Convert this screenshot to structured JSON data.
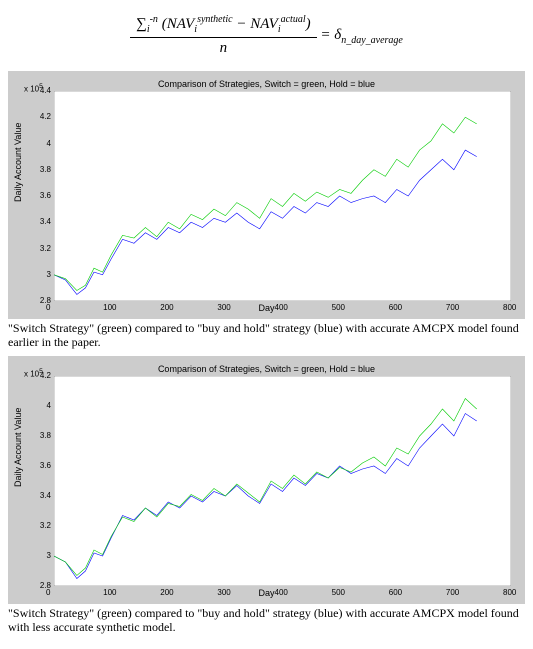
{
  "formula": {
    "sumLimits": "-n",
    "sumIndex": "i",
    "term1": "NAV",
    "term1_sub": "i",
    "term1_sup": "synthetic",
    "term2": "NAV",
    "term2_sub": "i",
    "term2_sup": "actual",
    "denom": "n",
    "rhs_symbol": "δ",
    "rhs_sub": "n_day_average"
  },
  "chart1": {
    "title": "Comparison of Strategies, Switch = green, Hold = blue",
    "ylabel": "Daily Account Value",
    "xlabel": "Day",
    "exp": "x 10",
    "exp_power": "5",
    "xlim": [
      0,
      800
    ],
    "ylim": [
      2.8,
      4.4
    ],
    "yticks": [
      "2.8",
      "3",
      "3.2",
      "3.4",
      "3.6",
      "3.8",
      "4",
      "4.2",
      "4.4"
    ],
    "xticks": [
      "0",
      "100",
      "200",
      "300",
      "400",
      "500",
      "600",
      "700",
      "800"
    ],
    "colors": {
      "switch": "#00cc00",
      "hold": "#0000ff",
      "plot_bg": "#ffffff",
      "panel_bg": "#cccccc",
      "axis": "#000000"
    },
    "switch_series": [
      [
        0,
        3.0
      ],
      [
        20,
        2.97
      ],
      [
        40,
        2.88
      ],
      [
        55,
        2.92
      ],
      [
        70,
        3.05
      ],
      [
        85,
        3.02
      ],
      [
        100,
        3.15
      ],
      [
        120,
        3.3
      ],
      [
        140,
        3.28
      ],
      [
        160,
        3.36
      ],
      [
        180,
        3.29
      ],
      [
        200,
        3.4
      ],
      [
        220,
        3.35
      ],
      [
        240,
        3.46
      ],
      [
        260,
        3.42
      ],
      [
        280,
        3.5
      ],
      [
        300,
        3.45
      ],
      [
        320,
        3.55
      ],
      [
        340,
        3.5
      ],
      [
        360,
        3.43
      ],
      [
        380,
        3.58
      ],
      [
        400,
        3.52
      ],
      [
        420,
        3.62
      ],
      [
        440,
        3.56
      ],
      [
        460,
        3.63
      ],
      [
        480,
        3.59
      ],
      [
        500,
        3.65
      ],
      [
        520,
        3.62
      ],
      [
        540,
        3.72
      ],
      [
        560,
        3.8
      ],
      [
        580,
        3.75
      ],
      [
        600,
        3.88
      ],
      [
        620,
        3.82
      ],
      [
        640,
        3.95
      ],
      [
        660,
        4.02
      ],
      [
        680,
        4.15
      ],
      [
        700,
        4.08
      ],
      [
        720,
        4.2
      ],
      [
        740,
        4.15
      ]
    ],
    "hold_series": [
      [
        0,
        3.0
      ],
      [
        20,
        2.96
      ],
      [
        40,
        2.85
      ],
      [
        55,
        2.9
      ],
      [
        70,
        3.02
      ],
      [
        85,
        3.0
      ],
      [
        100,
        3.12
      ],
      [
        120,
        3.27
      ],
      [
        140,
        3.24
      ],
      [
        160,
        3.32
      ],
      [
        180,
        3.27
      ],
      [
        200,
        3.36
      ],
      [
        220,
        3.32
      ],
      [
        240,
        3.4
      ],
      [
        260,
        3.36
      ],
      [
        280,
        3.43
      ],
      [
        300,
        3.4
      ],
      [
        320,
        3.47
      ],
      [
        340,
        3.4
      ],
      [
        360,
        3.35
      ],
      [
        380,
        3.48
      ],
      [
        400,
        3.43
      ],
      [
        420,
        3.52
      ],
      [
        440,
        3.47
      ],
      [
        460,
        3.55
      ],
      [
        480,
        3.52
      ],
      [
        500,
        3.6
      ],
      [
        520,
        3.55
      ],
      [
        540,
        3.58
      ],
      [
        560,
        3.6
      ],
      [
        580,
        3.55
      ],
      [
        600,
        3.65
      ],
      [
        620,
        3.6
      ],
      [
        640,
        3.72
      ],
      [
        660,
        3.8
      ],
      [
        680,
        3.88
      ],
      [
        700,
        3.8
      ],
      [
        720,
        3.95
      ],
      [
        740,
        3.9
      ]
    ]
  },
  "caption1": "\"Switch Strategy\" (green) compared to \"buy and hold\" strategy (blue) with accurate AMCPX model found earlier in the paper.",
  "chart2": {
    "title": "Comparison of Strategies, Switch = green, Hold = blue",
    "ylabel": "Daily Account Value",
    "xlabel": "Day",
    "exp": "x 10",
    "exp_power": "5",
    "xlim": [
      0,
      800
    ],
    "ylim": [
      2.8,
      4.2
    ],
    "yticks": [
      "2.8",
      "3",
      "3.2",
      "3.4",
      "3.6",
      "3.8",
      "4",
      "4.2"
    ],
    "xticks": [
      "0",
      "100",
      "200",
      "300",
      "400",
      "500",
      "600",
      "700",
      "800"
    ],
    "colors": {
      "switch": "#00cc00",
      "hold": "#0000ff",
      "plot_bg": "#ffffff",
      "panel_bg": "#cccccc",
      "axis": "#000000"
    },
    "switch_series": [
      [
        0,
        3.0
      ],
      [
        20,
        2.96
      ],
      [
        40,
        2.87
      ],
      [
        55,
        2.92
      ],
      [
        70,
        3.04
      ],
      [
        85,
        3.01
      ],
      [
        100,
        3.13
      ],
      [
        120,
        3.26
      ],
      [
        140,
        3.23
      ],
      [
        160,
        3.32
      ],
      [
        180,
        3.26
      ],
      [
        200,
        3.35
      ],
      [
        220,
        3.33
      ],
      [
        240,
        3.41
      ],
      [
        260,
        3.37
      ],
      [
        280,
        3.45
      ],
      [
        300,
        3.4
      ],
      [
        320,
        3.48
      ],
      [
        340,
        3.42
      ],
      [
        360,
        3.36
      ],
      [
        380,
        3.5
      ],
      [
        400,
        3.45
      ],
      [
        420,
        3.54
      ],
      [
        440,
        3.48
      ],
      [
        460,
        3.56
      ],
      [
        480,
        3.52
      ],
      [
        500,
        3.59
      ],
      [
        520,
        3.56
      ],
      [
        540,
        3.62
      ],
      [
        560,
        3.66
      ],
      [
        580,
        3.6
      ],
      [
        600,
        3.72
      ],
      [
        620,
        3.68
      ],
      [
        640,
        3.8
      ],
      [
        660,
        3.88
      ],
      [
        680,
        3.98
      ],
      [
        700,
        3.9
      ],
      [
        720,
        4.05
      ],
      [
        740,
        3.98
      ]
    ],
    "hold_series": [
      [
        0,
        3.0
      ],
      [
        20,
        2.96
      ],
      [
        40,
        2.85
      ],
      [
        55,
        2.9
      ],
      [
        70,
        3.02
      ],
      [
        85,
        3.0
      ],
      [
        100,
        3.12
      ],
      [
        120,
        3.27
      ],
      [
        140,
        3.24
      ],
      [
        160,
        3.32
      ],
      [
        180,
        3.27
      ],
      [
        200,
        3.36
      ],
      [
        220,
        3.32
      ],
      [
        240,
        3.4
      ],
      [
        260,
        3.36
      ],
      [
        280,
        3.43
      ],
      [
        300,
        3.4
      ],
      [
        320,
        3.47
      ],
      [
        340,
        3.4
      ],
      [
        360,
        3.35
      ],
      [
        380,
        3.48
      ],
      [
        400,
        3.43
      ],
      [
        420,
        3.52
      ],
      [
        440,
        3.47
      ],
      [
        460,
        3.55
      ],
      [
        480,
        3.52
      ],
      [
        500,
        3.6
      ],
      [
        520,
        3.55
      ],
      [
        540,
        3.58
      ],
      [
        560,
        3.6
      ],
      [
        580,
        3.55
      ],
      [
        600,
        3.65
      ],
      [
        620,
        3.6
      ],
      [
        640,
        3.72
      ],
      [
        660,
        3.8
      ],
      [
        680,
        3.88
      ],
      [
        700,
        3.8
      ],
      [
        720,
        3.95
      ],
      [
        740,
        3.9
      ]
    ]
  },
  "caption2": "\"Switch Strategy\" (green) compared to \"buy and hold\" strategy (blue) with accurate AMCPX model found with less accurate synthetic model."
}
